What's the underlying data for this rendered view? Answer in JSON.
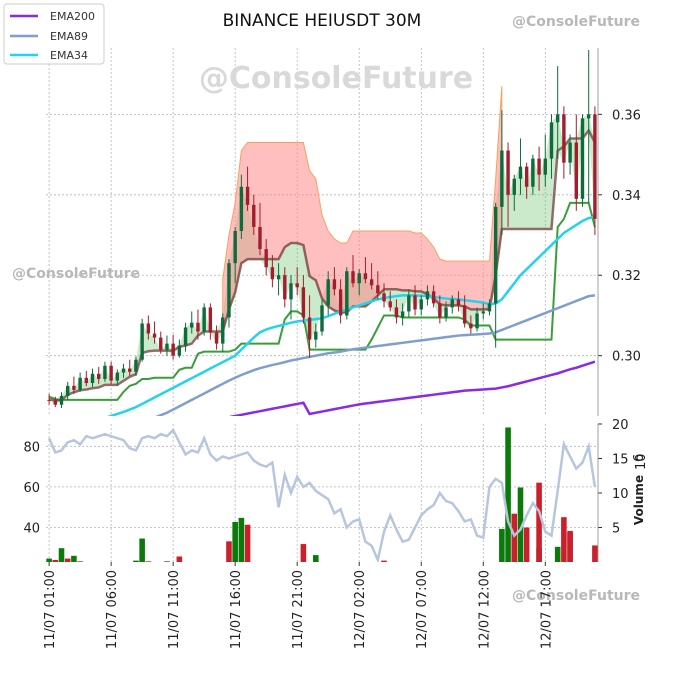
{
  "watermark": "@ConsoleFuture",
  "chart_data": [
    {
      "type": "candlestick",
      "title": "BINANCE HEIUSDT 30M",
      "ylim": [
        0.285,
        0.3765
      ],
      "yticks": [
        0.3,
        0.32,
        0.34,
        0.36
      ],
      "ytick_labels": [
        "0.30",
        "0.32",
        "0.34",
        "0.36"
      ],
      "xticks": [
        "11/07 01:00",
        "11/07 06:00",
        "11/07 11:00",
        "11/07 16:00",
        "11/07 21:00",
        "12/07 02:00",
        "12/07 07:00",
        "12/07 12:00",
        "12/07 17:00"
      ],
      "bars": 89,
      "candles": [
        [
          0.289,
          0.2905,
          0.2878,
          0.2889
        ],
        [
          0.2889,
          0.2898,
          0.2872,
          0.2878
        ],
        [
          0.2878,
          0.2909,
          0.287,
          0.29
        ],
        [
          0.29,
          0.2935,
          0.289,
          0.2925
        ],
        [
          0.2925,
          0.2948,
          0.2905,
          0.2915
        ],
        [
          0.2915,
          0.2958,
          0.291,
          0.2945
        ],
        [
          0.2945,
          0.2962,
          0.2924,
          0.2932
        ],
        [
          0.2932,
          0.2968,
          0.2922,
          0.2955
        ],
        [
          0.2955,
          0.2972,
          0.293,
          0.2942
        ],
        [
          0.2942,
          0.2985,
          0.2935,
          0.2975
        ],
        [
          0.2975,
          0.2985,
          0.293,
          0.2938
        ],
        [
          0.2938,
          0.2966,
          0.2925,
          0.2958
        ],
        [
          0.2958,
          0.298,
          0.2945,
          0.2968
        ],
        [
          0.2968,
          0.299,
          0.295,
          0.296
        ],
        [
          0.296,
          0.2998,
          0.295,
          0.299
        ],
        [
          0.299,
          0.3092,
          0.2985,
          0.308
        ],
        [
          0.308,
          0.31,
          0.304,
          0.3055
        ],
        [
          0.3055,
          0.3085,
          0.303,
          0.3045
        ],
        [
          0.3045,
          0.306,
          0.3005,
          0.3015
        ],
        [
          0.3015,
          0.305,
          0.3,
          0.303
        ],
        [
          0.303,
          0.3052,
          0.299,
          0.3
        ],
        [
          0.3,
          0.304,
          0.2995,
          0.3025
        ],
        [
          0.3025,
          0.3082,
          0.301,
          0.307
        ],
        [
          0.307,
          0.311,
          0.3055,
          0.3082
        ],
        [
          0.3082,
          0.3115,
          0.304,
          0.306
        ],
        [
          0.306,
          0.313,
          0.305,
          0.312
        ],
        [
          0.312,
          0.313,
          0.304,
          0.3058
        ],
        [
          0.3058,
          0.3075,
          0.3015,
          0.303
        ],
        [
          0.303,
          0.3105,
          0.301,
          0.3095
        ],
        [
          0.3095,
          0.324,
          0.307,
          0.323
        ],
        [
          0.323,
          0.332,
          0.318,
          0.331
        ],
        [
          0.331,
          0.345,
          0.329,
          0.342
        ],
        [
          0.342,
          0.347,
          0.336,
          0.3375
        ],
        [
          0.3375,
          0.34,
          0.33,
          0.332
        ],
        [
          0.332,
          0.338,
          0.325,
          0.3265
        ],
        [
          0.3265,
          0.329,
          0.32,
          0.322
        ],
        [
          0.322,
          0.325,
          0.317,
          0.319
        ],
        [
          0.319,
          0.323,
          0.315,
          0.32
        ],
        [
          0.32,
          0.322,
          0.312,
          0.314
        ],
        [
          0.314,
          0.32,
          0.309,
          0.318
        ],
        [
          0.318,
          0.322,
          0.315,
          0.317
        ],
        [
          0.317,
          0.32,
          0.308,
          0.3095
        ],
        [
          0.3095,
          0.315,
          0.2995,
          0.304
        ],
        [
          0.304,
          0.308,
          0.302,
          0.306
        ],
        [
          0.306,
          0.314,
          0.305,
          0.3125
        ],
        [
          0.3125,
          0.321,
          0.31,
          0.319
        ],
        [
          0.319,
          0.322,
          0.315,
          0.3165
        ],
        [
          0.3165,
          0.319,
          0.308,
          0.31
        ],
        [
          0.31,
          0.322,
          0.309,
          0.321
        ],
        [
          0.321,
          0.325,
          0.317,
          0.318
        ],
        [
          0.318,
          0.3215,
          0.315,
          0.3205
        ],
        [
          0.3205,
          0.3245,
          0.318,
          0.319
        ],
        [
          0.319,
          0.323,
          0.3165,
          0.3175
        ],
        [
          0.3175,
          0.321,
          0.314,
          0.3155
        ],
        [
          0.3155,
          0.318,
          0.312,
          0.3135
        ],
        [
          0.3135,
          0.316,
          0.311,
          0.312
        ],
        [
          0.312,
          0.314,
          0.308,
          0.3095
        ],
        [
          0.3095,
          0.313,
          0.3075,
          0.311
        ],
        [
          0.311,
          0.3165,
          0.3095,
          0.315
        ],
        [
          0.315,
          0.3175,
          0.31,
          0.3115
        ],
        [
          0.3115,
          0.315,
          0.31,
          0.314
        ],
        [
          0.314,
          0.3175,
          0.3125,
          0.316
        ],
        [
          0.316,
          0.3175,
          0.312,
          0.313
        ],
        [
          0.313,
          0.315,
          0.308,
          0.3095
        ],
        [
          0.3095,
          0.3135,
          0.3085,
          0.312
        ],
        [
          0.312,
          0.315,
          0.3105,
          0.314
        ],
        [
          0.314,
          0.316,
          0.311,
          0.3125
        ],
        [
          0.3125,
          0.315,
          0.307,
          0.308
        ],
        [
          0.308,
          0.31,
          0.3055,
          0.3068
        ],
        [
          0.3068,
          0.312,
          0.306,
          0.3105
        ],
        [
          0.3105,
          0.313,
          0.309,
          0.311
        ],
        [
          0.311,
          0.314,
          0.31,
          0.313
        ],
        [
          0.313,
          0.338,
          0.302,
          0.337
        ],
        [
          0.337,
          0.361,
          0.33,
          0.351
        ],
        [
          0.351,
          0.353,
          0.332,
          0.34
        ],
        [
          0.34,
          0.345,
          0.336,
          0.344
        ],
        [
          0.344,
          0.354,
          0.34,
          0.347
        ],
        [
          0.347,
          0.348,
          0.339,
          0.342
        ],
        [
          0.342,
          0.35,
          0.34,
          0.349
        ],
        [
          0.349,
          0.352,
          0.341,
          0.345
        ],
        [
          0.345,
          0.355,
          0.342,
          0.349
        ],
        [
          0.349,
          0.36,
          0.344,
          0.358
        ],
        [
          0.358,
          0.372,
          0.349,
          0.36
        ],
        [
          0.36,
          0.362,
          0.344,
          0.348
        ],
        [
          0.348,
          0.355,
          0.345,
          0.353
        ],
        [
          0.353,
          0.36,
          0.336,
          0.339
        ],
        [
          0.339,
          0.36,
          0.337,
          0.359
        ],
        [
          0.359,
          0.376,
          0.338,
          0.36
        ],
        [
          0.36,
          0.362,
          0.33,
          0.334
        ]
      ],
      "series": [
        {
          "name": "EMA200",
          "color": "#8a2be2",
          "values": [
            0.276,
            0.2763,
            0.2766,
            0.2769,
            0.2772,
            0.2775,
            0.2778,
            0.2781,
            0.2784,
            0.2787,
            0.279,
            0.2793,
            0.2796,
            0.2799,
            0.2802,
            0.2805,
            0.2808,
            0.2811,
            0.2814,
            0.2817,
            0.282,
            0.2823,
            0.2826,
            0.2829,
            0.2832,
            0.2835,
            0.2838,
            0.2841,
            0.2844,
            0.2847,
            0.285,
            0.2853,
            0.2856,
            0.2859,
            0.2862,
            0.2865,
            0.2868,
            0.2871,
            0.2874,
            0.2877,
            0.288,
            0.2883,
            0.2855,
            0.2858,
            0.2861,
            0.2864,
            0.2867,
            0.287,
            0.2873,
            0.2876,
            0.2879,
            0.2881,
            0.2883,
            0.2885,
            0.2887,
            0.2889,
            0.2891,
            0.2893,
            0.2895,
            0.2897,
            0.2899,
            0.2901,
            0.2903,
            0.2905,
            0.2907,
            0.2909,
            0.2911,
            0.2913,
            0.2914,
            0.2915,
            0.2916,
            0.2917,
            0.2918,
            0.2921,
            0.2924,
            0.2928,
            0.2932,
            0.2936,
            0.294,
            0.2944,
            0.2948,
            0.2952,
            0.2956,
            0.2961,
            0.2966,
            0.297,
            0.2975,
            0.298,
            0.2985
          ]
        },
        {
          "name": "EMA89",
          "color": "#7e9ecf",
          "values": [
            0.278,
            0.2783,
            0.2786,
            0.2789,
            0.2792,
            0.2795,
            0.2798,
            0.2801,
            0.2804,
            0.2807,
            0.281,
            0.2813,
            0.2816,
            0.2819,
            0.2822,
            0.283,
            0.2838,
            0.2846,
            0.2852,
            0.2858,
            0.2866,
            0.2874,
            0.2882,
            0.289,
            0.2898,
            0.2906,
            0.2914,
            0.2922,
            0.293,
            0.2938,
            0.2945,
            0.2952,
            0.2958,
            0.2964,
            0.2969,
            0.2973,
            0.2977,
            0.298,
            0.2984,
            0.2988,
            0.2991,
            0.2994,
            0.2997,
            0.3,
            0.3003,
            0.3006,
            0.3008,
            0.301,
            0.3013,
            0.3016,
            0.3018,
            0.302,
            0.3022,
            0.3024,
            0.3026,
            0.3028,
            0.303,
            0.3032,
            0.3034,
            0.3036,
            0.3038,
            0.304,
            0.3042,
            0.3044,
            0.3046,
            0.3048,
            0.305,
            0.3051,
            0.3052,
            0.3053,
            0.3054,
            0.3055,
            0.3058,
            0.3064,
            0.307,
            0.3076,
            0.3082,
            0.3088,
            0.3094,
            0.31,
            0.3106,
            0.3112,
            0.3118,
            0.3124,
            0.313,
            0.3136,
            0.3142,
            0.3148,
            0.315
          ]
        },
        {
          "name": "EMA34",
          "color": "#22d3ee",
          "values": [
            0.28,
            0.2805,
            0.281,
            0.2815,
            0.282,
            0.2825,
            0.283,
            0.2835,
            0.284,
            0.2845,
            0.285,
            0.2855,
            0.286,
            0.2866,
            0.2872,
            0.288,
            0.2888,
            0.2896,
            0.2904,
            0.2912,
            0.292,
            0.2928,
            0.2936,
            0.2944,
            0.2952,
            0.296,
            0.2968,
            0.2976,
            0.2984,
            0.2992,
            0.3,
            0.3015,
            0.303,
            0.3045,
            0.3058,
            0.3065,
            0.307,
            0.3074,
            0.3078,
            0.3082,
            0.3085,
            0.3087,
            0.3089,
            0.3091,
            0.3093,
            0.3098,
            0.3104,
            0.311,
            0.3115,
            0.312,
            0.3125,
            0.313,
            0.3135,
            0.314,
            0.3143,
            0.3146,
            0.3148,
            0.315,
            0.315,
            0.315,
            0.3149,
            0.3148,
            0.3146,
            0.3144,
            0.3142,
            0.3141,
            0.314,
            0.3138,
            0.3136,
            0.3134,
            0.3132,
            0.3128,
            0.313,
            0.314,
            0.316,
            0.318,
            0.32,
            0.3215,
            0.323,
            0.3245,
            0.326,
            0.3275,
            0.329,
            0.3305,
            0.3315,
            0.3325,
            0.3335,
            0.3342,
            0.3345
          ]
        }
      ],
      "legend": {
        "placement": "top-left"
      }
    },
    {
      "type": "bar+line",
      "ylabel_left": "",
      "ylabel_right": "Volume",
      "ylabel_right_exponent": "6",
      "left_ylim": [
        23,
        91
      ],
      "left_yticks": [
        40,
        60,
        80
      ],
      "right_ylim": [
        0,
        20
      ],
      "right_yticks": [
        5,
        10,
        15,
        20
      ],
      "right_ytick_labels": [
        "5",
        "10",
        "15",
        "20"
      ],
      "line_values": [
        84,
        77,
        78,
        82,
        83,
        81,
        85,
        84,
        85,
        86,
        85,
        84,
        83,
        79,
        78,
        84,
        85,
        84,
        86,
        85,
        88,
        82,
        76,
        78,
        77,
        84,
        76,
        73,
        75,
        74,
        75,
        76,
        77,
        73,
        71,
        70,
        72,
        50,
        66,
        57,
        65,
        60,
        62,
        58,
        56,
        54,
        47,
        49,
        40,
        43,
        44,
        33,
        31,
        24,
        38,
        46,
        39,
        33,
        34,
        40,
        46,
        49,
        51,
        57,
        53,
        52,
        48,
        43,
        44,
        36,
        35,
        60,
        64,
        62,
        43,
        36,
        39,
        46,
        52,
        48,
        38,
        36,
        58,
        81,
        75,
        69,
        72,
        80,
        60
      ],
      "volume_up": [
        0.5,
        0,
        2.0,
        0,
        0.9,
        0,
        0,
        0,
        0,
        0,
        0,
        0,
        0,
        0,
        0.2,
        3.4,
        0,
        0,
        0,
        0.1,
        0,
        0,
        0,
        0,
        0,
        0,
        0,
        0,
        0,
        0,
        5.8,
        6.4,
        0,
        0,
        0,
        0,
        0,
        0,
        0,
        0,
        0,
        0,
        0,
        1.0,
        0,
        0,
        0,
        0,
        0,
        0,
        0,
        0,
        0,
        0,
        0,
        0,
        0,
        0,
        0,
        0,
        0,
        0,
        0,
        0,
        0,
        0,
        0,
        0,
        0,
        0,
        0,
        0,
        0,
        4.8,
        19.5,
        6.0,
        10.8,
        0,
        0,
        2.0,
        0,
        0,
        2.2,
        0,
        4.2,
        0,
        0,
        0,
        0
      ],
      "volume_down": [
        0,
        0.3,
        0,
        0.5,
        0,
        0.1,
        0,
        0,
        0,
        0,
        0,
        0,
        0,
        0,
        0,
        0,
        0.1,
        0,
        0,
        0,
        0,
        0.8,
        0,
        0,
        0,
        0,
        0,
        0,
        0,
        3.0,
        0,
        0,
        5.4,
        0,
        0,
        0,
        0,
        0,
        0,
        0,
        0,
        2.6,
        0,
        0,
        0,
        0,
        0,
        0,
        0,
        0,
        0,
        0,
        0,
        0,
        0.2,
        0,
        0,
        0,
        0,
        0,
        0,
        0,
        0,
        0,
        0,
        0,
        0,
        0,
        0,
        0,
        0,
        0,
        0,
        0,
        0,
        7.0,
        0,
        5.0,
        0,
        11.5,
        0,
        0,
        0,
        6.5,
        4.5,
        0,
        0,
        0,
        2.4
      ]
    }
  ]
}
